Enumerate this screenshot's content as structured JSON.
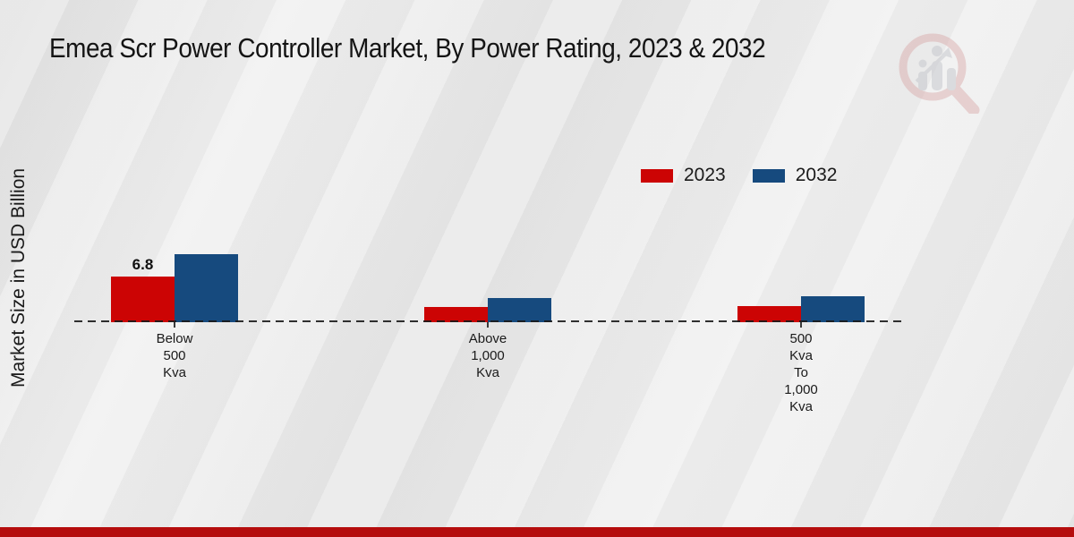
{
  "page": {
    "title": "Emea Scr Power Controller Market, By Power Rating, 2023 & 2032",
    "background_color": "#e9e9e9",
    "footer_bar_color": "#b50d0d"
  },
  "watermark": {
    "icon": "magnifier-bar-chart-logo",
    "ring_color": "#d8a7a7",
    "bars_color": "#bfc1c7"
  },
  "legend": {
    "position": "top-right",
    "entries": [
      {
        "label": "2023",
        "color": "#cc0404"
      },
      {
        "label": "2032",
        "color": "#164a7e"
      }
    ]
  },
  "chart_data": {
    "type": "bar",
    "title": "Emea Scr Power Controller Market, By Power Rating, 2023 & 2032",
    "xlabel": "",
    "ylabel": "Market Size in USD Billion",
    "categories": [
      "Below 500 Kva",
      "Above 1,000 Kva",
      "500 Kva To 1,000 Kva"
    ],
    "category_lines": [
      [
        "Below",
        "500",
        "Kva"
      ],
      [
        "Above",
        "1,000",
        "Kva"
      ],
      [
        "500",
        "Kva",
        "To",
        "1,000",
        "Kva"
      ]
    ],
    "series": [
      {
        "name": "2023",
        "color": "#cc0404",
        "values": [
          6.8,
          2.2,
          2.4
        ],
        "data_labels": [
          "6.8",
          "",
          ""
        ]
      },
      {
        "name": "2032",
        "color": "#164a7e",
        "values": [
          10.1,
          3.6,
          3.8
        ],
        "data_labels": [
          "",
          "",
          ""
        ]
      }
    ],
    "ylim": [
      0,
      12
    ],
    "grid": false,
    "baseline_style": "dashed",
    "legend_position": "top-right"
  }
}
